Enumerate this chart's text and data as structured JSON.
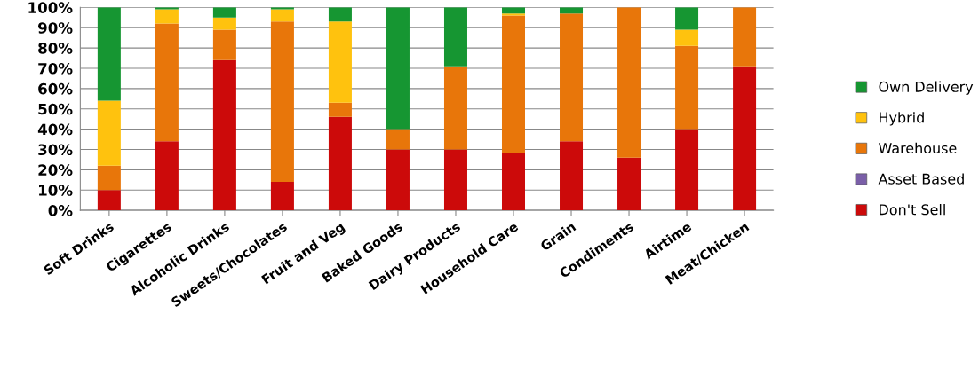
{
  "chart_data": {
    "type": "bar",
    "stacked": true,
    "categories": [
      "Soft Drinks",
      "Cigarettes",
      "Alcoholic Drinks",
      "Sweets/Chocolates",
      "Fruit and Veg",
      "Baked Goods",
      "Dairy Products",
      "Household Care",
      "Grain",
      "Condiments",
      "Airtime",
      "Meat/Chicken"
    ],
    "series": [
      {
        "name": "Don't Sell",
        "color": "#cc0a0a",
        "values": [
          10,
          34,
          74,
          14,
          46,
          30,
          30,
          28,
          34,
          26,
          40,
          71
        ]
      },
      {
        "name": "Asset Based",
        "color": "#7a5fa8",
        "values": [
          0,
          0,
          0,
          0,
          0,
          0,
          0,
          0,
          0,
          0,
          0,
          0
        ]
      },
      {
        "name": "Warehouse",
        "color": "#e8760a",
        "values": [
          12,
          58,
          15,
          79,
          7,
          10,
          41,
          68,
          63,
          74,
          41,
          29
        ]
      },
      {
        "name": "Hybrid",
        "color": "#ffc20e",
        "values": [
          32,
          7,
          6,
          6,
          40,
          0,
          0,
          1,
          0,
          0,
          8,
          0
        ]
      },
      {
        "name": "Own Delivery",
        "color": "#169632",
        "values": [
          46,
          1,
          5,
          1,
          7,
          60,
          29,
          3,
          3,
          0,
          11,
          0
        ]
      }
    ],
    "ylim": [
      0,
      100
    ],
    "yticks": [
      {
        "value": 0,
        "label": "0%"
      },
      {
        "value": 10,
        "label": "10%"
      },
      {
        "value": 20,
        "label": "20%"
      },
      {
        "value": 30,
        "label": "30%"
      },
      {
        "value": 40,
        "label": "40%"
      },
      {
        "value": 50,
        "label": "50%"
      },
      {
        "value": 60,
        "label": "60%"
      },
      {
        "value": 70,
        "label": "70%"
      },
      {
        "value": 80,
        "label": "80%"
      },
      {
        "value": 90,
        "label": "90%"
      },
      {
        "value": 100,
        "label": "100%"
      }
    ],
    "grid": "y",
    "legend": "right"
  }
}
